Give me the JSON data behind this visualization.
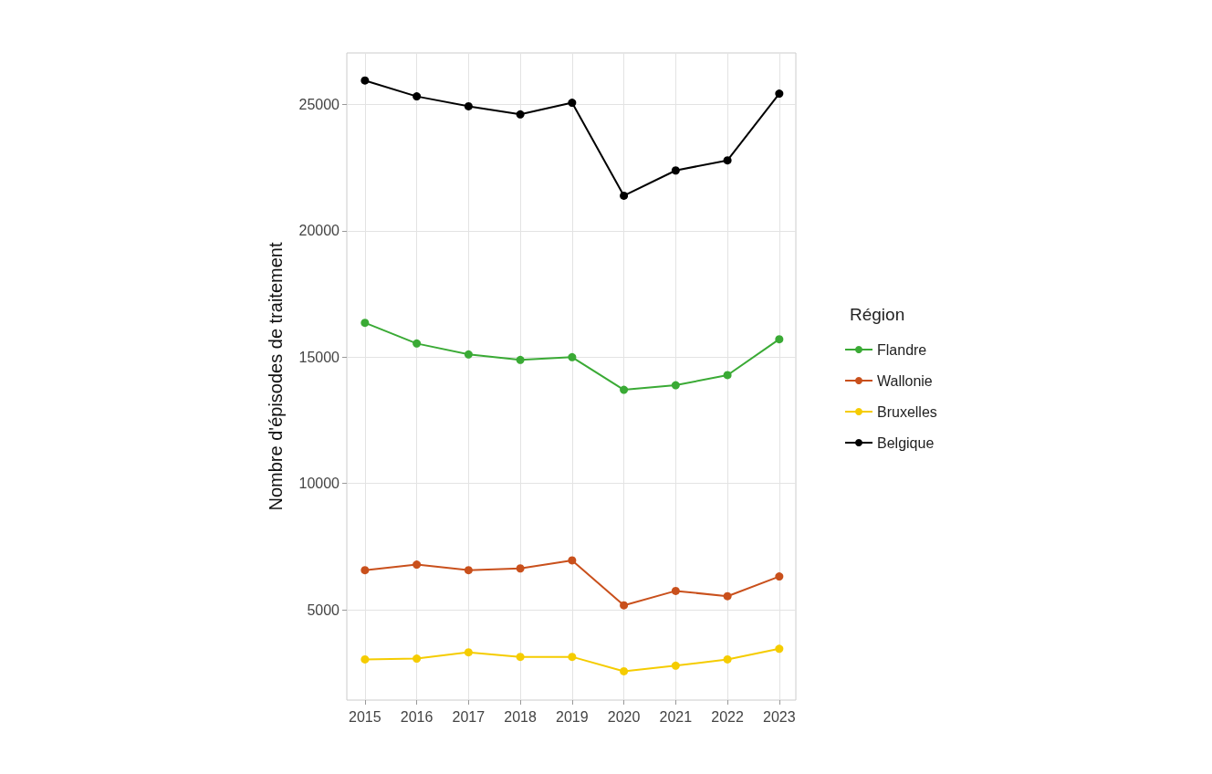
{
  "chart_data": {
    "type": "line",
    "ylabel": "Nombre d'épisodes de traitement",
    "legend_title": "Région",
    "legend": "right",
    "grid": true,
    "marker": "circle",
    "line_style": "solid",
    "x": [
      2015,
      2016,
      2017,
      2018,
      2019,
      2020,
      2021,
      2022,
      2023
    ],
    "xlim": [
      2014.65,
      2023.32
    ],
    "xticks": [
      2015,
      2016,
      2017,
      2018,
      2019,
      2020,
      2021,
      2022,
      2023
    ],
    "ylim": [
      1430,
      27040
    ],
    "yticks": [
      5000,
      10000,
      15000,
      20000,
      25000
    ],
    "series": [
      {
        "name": "Flandre",
        "color": "#3aaa35",
        "values": [
          16360,
          15540,
          15110,
          14890,
          15000,
          13710,
          13890,
          14290,
          15710
        ]
      },
      {
        "name": "Wallonie",
        "color": "#c9501c",
        "values": [
          6570,
          6790,
          6570,
          6640,
          6960,
          5180,
          5750,
          5540,
          6320
        ]
      },
      {
        "name": "Bruxelles",
        "color": "#f5cc00",
        "values": [
          3040,
          3070,
          3320,
          3140,
          3140,
          2570,
          2790,
          3040,
          3460
        ]
      },
      {
        "name": "Belgique",
        "color": "#000000",
        "values": [
          25950,
          25320,
          24930,
          24610,
          25070,
          21390,
          22390,
          22790,
          25430
        ]
      }
    ]
  }
}
